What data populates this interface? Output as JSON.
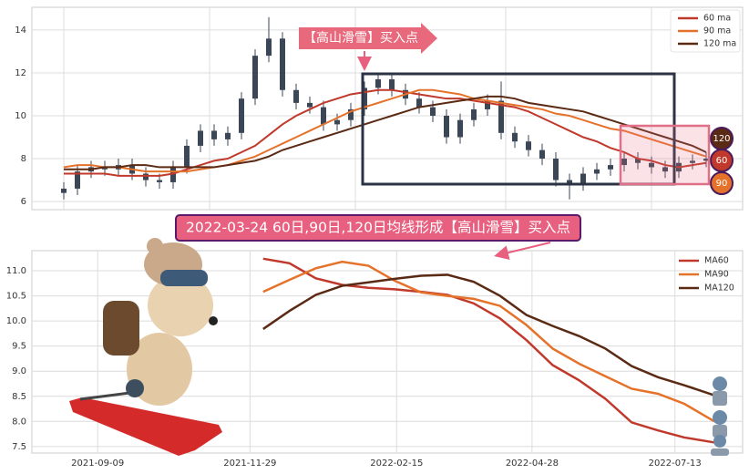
{
  "chart_data": [
    {
      "type": "candlestick",
      "legend": "upper right",
      "grid": true,
      "color": "#3b4656",
      "ylim": [
        5.62,
        15.06
      ],
      "yticks": [
        6,
        8,
        10,
        12,
        14
      ],
      "open": [
        6.4,
        6.6,
        7.4,
        7.6,
        7.5,
        7.7,
        7.3,
        7.0,
        6.9,
        7.6,
        8.6,
        9.3,
        8.9,
        9.2,
        10.8,
        12.8,
        13.6,
        11.2,
        10.6,
        10.4,
        9.6,
        9.8,
        10.3,
        11.3,
        11.7,
        11.2,
        10.8,
        10.4,
        10.0,
        9.0,
        9.8,
        10.3,
        10.7,
        9.2,
        8.8,
        8.4,
        8.0,
        7.0,
        6.8,
        7.3,
        7.5,
        7.7,
        8.0,
        7.8,
        7.6,
        7.4,
        7.8,
        7.9
      ],
      "high": [
        6.9,
        7.7,
        7.9,
        7.9,
        8.0,
        8.0,
        7.6,
        7.3,
        7.9,
        8.9,
        9.6,
        9.6,
        9.5,
        11.1,
        13.1,
        14.6,
        13.9,
        11.5,
        10.9,
        10.7,
        10.1,
        10.6,
        11.6,
        12.0,
        12.0,
        11.5,
        11.1,
        10.7,
        10.3,
        10.1,
        10.6,
        11.0,
        11.6,
        9.5,
        9.1,
        8.7,
        8.3,
        7.3,
        7.6,
        7.8,
        8.0,
        8.3,
        8.3,
        8.1,
        7.9,
        8.1,
        8.2,
        8.3
      ],
      "low": [
        6.1,
        6.3,
        7.1,
        7.2,
        7.2,
        7.0,
        6.7,
        6.6,
        6.6,
        7.3,
        8.3,
        8.6,
        8.6,
        8.9,
        10.5,
        12.5,
        10.9,
        10.3,
        10.1,
        9.3,
        9.3,
        9.5,
        10.0,
        11.0,
        10.9,
        10.5,
        10.1,
        9.7,
        8.7,
        8.7,
        9.5,
        10.0,
        8.9,
        8.5,
        8.1,
        7.7,
        6.7,
        6.1,
        6.5,
        7.0,
        7.2,
        7.4,
        7.5,
        7.3,
        7.1,
        7.1,
        7.5,
        7.6
      ],
      "close": [
        6.6,
        7.4,
        7.6,
        7.5,
        7.7,
        7.3,
        7.0,
        6.9,
        7.6,
        8.6,
        9.3,
        8.9,
        9.2,
        10.8,
        12.8,
        13.6,
        11.2,
        10.6,
        10.4,
        9.6,
        9.8,
        10.3,
        11.3,
        11.7,
        11.2,
        10.8,
        10.4,
        10.0,
        9.0,
        9.8,
        10.3,
        10.7,
        9.2,
        8.8,
        8.4,
        8.0,
        7.0,
        6.8,
        7.3,
        7.5,
        7.7,
        8.0,
        7.8,
        7.6,
        7.4,
        7.8,
        7.9,
        8.0
      ],
      "series": [
        {
          "name": "60 ma",
          "color": "#c0392b",
          "values": [
            7.3,
            7.3,
            7.3,
            7.3,
            7.2,
            7.2,
            7.2,
            7.2,
            7.3,
            7.5,
            7.7,
            7.9,
            8.0,
            8.3,
            8.6,
            9.1,
            9.6,
            10.0,
            10.3,
            10.6,
            10.8,
            11.0,
            11.1,
            11.2,
            11.2,
            11.1,
            11.0,
            10.9,
            10.8,
            10.8,
            10.7,
            10.6,
            10.5,
            10.4,
            10.2,
            9.9,
            9.6,
            9.3,
            9.0,
            8.8,
            8.5,
            8.3,
            8.0,
            7.9,
            7.7,
            7.6,
            7.7,
            7.8
          ]
        },
        {
          "name": "90 ma",
          "color": "#e5722a",
          "values": [
            7.6,
            7.7,
            7.7,
            7.6,
            7.6,
            7.5,
            7.4,
            7.4,
            7.4,
            7.4,
            7.5,
            7.6,
            7.7,
            7.9,
            8.1,
            8.4,
            8.7,
            9.0,
            9.3,
            9.6,
            9.9,
            10.2,
            10.4,
            10.6,
            10.8,
            11.0,
            11.2,
            11.2,
            11.1,
            11.0,
            10.8,
            10.7,
            10.6,
            10.5,
            10.4,
            10.3,
            10.1,
            10.0,
            9.8,
            9.6,
            9.4,
            9.3,
            9.1,
            8.9,
            8.7,
            8.5,
            8.3,
            8.1
          ]
        },
        {
          "name": "120 ma",
          "color": "#5a2a14",
          "values": [
            7.5,
            7.5,
            7.5,
            7.6,
            7.6,
            7.7,
            7.7,
            7.6,
            7.6,
            7.6,
            7.6,
            7.6,
            7.7,
            7.8,
            7.9,
            8.1,
            8.4,
            8.6,
            8.8,
            9.0,
            9.2,
            9.4,
            9.6,
            9.8,
            10.0,
            10.2,
            10.4,
            10.5,
            10.6,
            10.7,
            10.8,
            10.9,
            10.9,
            10.8,
            10.6,
            10.5,
            10.4,
            10.3,
            10.2,
            10.0,
            9.8,
            9.6,
            9.4,
            9.2,
            9.0,
            8.8,
            8.6,
            8.3
          ]
        }
      ],
      "annotations": {
        "signal": "【高山滑雪】买入点",
        "badges": [
          {
            "label": "120",
            "color": "#5a2a14"
          },
          {
            "label": "60",
            "color": "#c0392b"
          },
          {
            "label": "90",
            "color": "#e5722a"
          }
        ]
      }
    },
    {
      "type": "line",
      "legend": "upper right",
      "grid": true,
      "title": "2022-03-24 60日,90日,120日均线形成【高山滑雪】买入点",
      "x": [
        "2021-12-06",
        "2021-12-20",
        "2022-01-03",
        "2022-01-17",
        "2022-01-31",
        "2022-02-14",
        "2022-02-28",
        "2022-03-14",
        "2022-03-28",
        "2022-04-11",
        "2022-04-25",
        "2022-05-09",
        "2022-05-23",
        "2022-06-06",
        "2022-06-20",
        "2022-07-04",
        "2022-07-18",
        "2022-08-03"
      ],
      "xlim": [
        "2021-08-05",
        "2022-08-18"
      ],
      "xticks": [
        "2021-09-09",
        "2021-11-29",
        "2022-02-15",
        "2022-04-28",
        "2022-07-13"
      ],
      "ylim": [
        7.37,
        11.4
      ],
      "yticks": [
        7.5,
        {
          "value": 8,
          "label": "8.0"
        },
        8.5,
        {
          "value": 9,
          "label": "9.0"
        },
        9.5,
        {
          "value": 10,
          "label": "10.0"
        },
        10.5,
        {
          "value": 11,
          "label": "11.0"
        }
      ],
      "series": [
        {
          "name": "MA60",
          "color": "#c0392b",
          "values": [
            11.24,
            11.15,
            10.85,
            10.72,
            10.66,
            10.63,
            10.58,
            10.52,
            10.35,
            10.05,
            9.62,
            9.12,
            8.82,
            8.45,
            7.98,
            7.82,
            7.68,
            7.58
          ]
        },
        {
          "name": "MA90",
          "color": "#e5722a",
          "values": [
            10.58,
            10.82,
            11.05,
            11.18,
            11.1,
            10.8,
            10.57,
            10.5,
            10.44,
            10.3,
            9.92,
            9.45,
            9.15,
            8.9,
            8.65,
            8.55,
            8.35,
            8.0
          ]
        },
        {
          "name": "MA120",
          "color": "#5a2a14",
          "values": [
            9.84,
            10.2,
            10.52,
            10.7,
            10.77,
            10.84,
            10.9,
            10.92,
            10.78,
            10.5,
            10.12,
            9.9,
            9.7,
            9.45,
            9.1,
            8.88,
            8.72,
            8.52
          ]
        }
      ]
    }
  ]
}
